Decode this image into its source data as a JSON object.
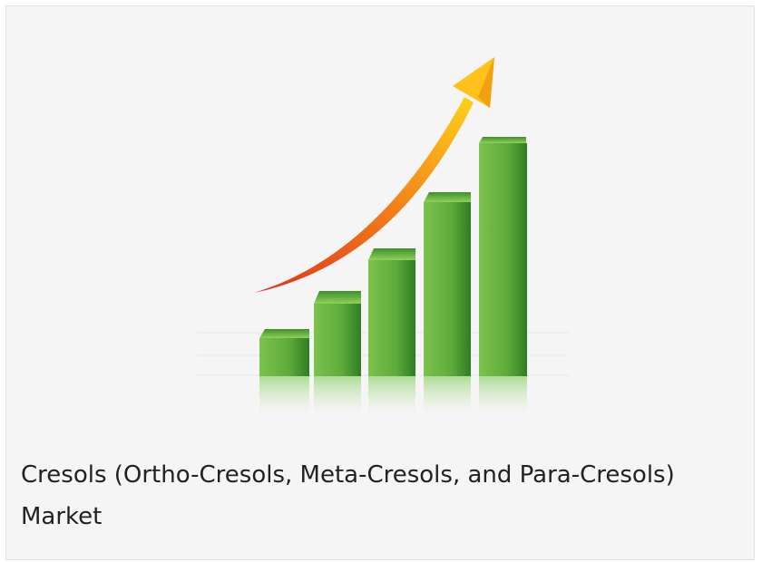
{
  "card": {
    "caption": "Cresols (Ortho-Cresols, Meta-Cresols, and Para-Cresols) Market"
  }
}
